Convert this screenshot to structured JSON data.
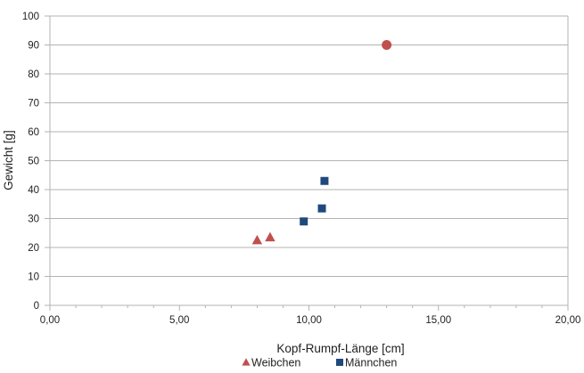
{
  "chart_data": {
    "type": "scatter",
    "title": "",
    "xlabel": "Kopf-Rumpf-Länge [cm]",
    "ylabel": "Gewicht  [g]",
    "xlim": [
      0,
      20
    ],
    "ylim": [
      0,
      100
    ],
    "x_ticks": [
      0,
      5,
      10,
      15,
      20
    ],
    "x_tick_labels": [
      "0,00",
      "5,00",
      "10,00",
      "15,00",
      "20,00"
    ],
    "x_minor_step": 1,
    "y_ticks": [
      0,
      10,
      20,
      30,
      40,
      50,
      60,
      70,
      80,
      90,
      100
    ],
    "y_tick_labels": [
      "0",
      "10",
      "20",
      "30",
      "40",
      "50",
      "60",
      "70",
      "80",
      "90",
      "100"
    ],
    "grid": "horizontal",
    "legend_position": "bottom",
    "series": [
      {
        "name": "Weibchen",
        "marker": "triangle",
        "color": "#c0504d",
        "points": [
          {
            "x": 8.0,
            "y": 22.5
          },
          {
            "x": 8.5,
            "y": 23.5
          }
        ]
      },
      {
        "name": "Männchen",
        "marker": "square",
        "color": "#1f497d",
        "points": [
          {
            "x": 9.8,
            "y": 29.0
          },
          {
            "x": 10.5,
            "y": 33.5
          },
          {
            "x": 10.6,
            "y": 43.0
          }
        ]
      },
      {
        "name": "",
        "marker": "circle",
        "color": "#c0504d",
        "points": [
          {
            "x": 13.0,
            "y": 90.0
          }
        ]
      }
    ]
  }
}
